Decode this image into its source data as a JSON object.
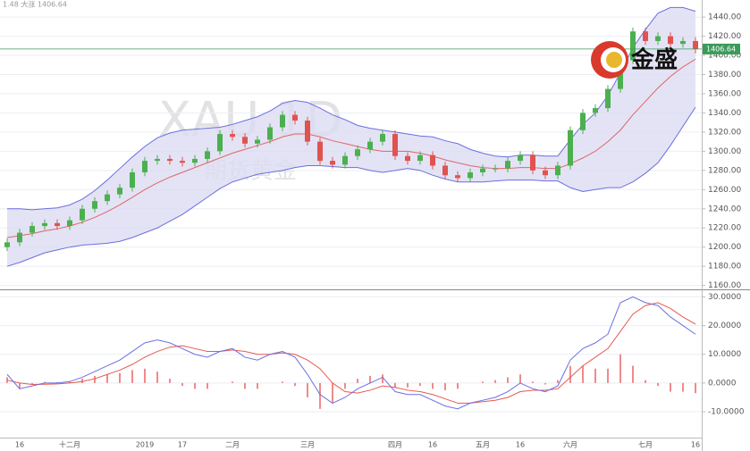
{
  "chart_data": [
    {
      "type": "candlestick",
      "header": "1.48 大涨 1406.64",
      "watermark": "XAU 1D",
      "watermark_sub": "期货黄金",
      "logo_text": "金盛",
      "categories": [
        null,
        "16",
        null,
        null,
        null,
        "十二月",
        null,
        null,
        null,
        null,
        null,
        "2019",
        null,
        null,
        "17",
        null,
        null,
        null,
        "二月",
        null,
        null,
        null,
        null,
        null,
        "三月",
        null,
        null,
        null,
        null,
        null,
        null,
        "四月",
        null,
        null,
        "16",
        null,
        null,
        null,
        "五月",
        null,
        null,
        "16",
        null,
        null,
        null,
        "六月",
        null,
        null,
        null,
        null,
        null,
        "七月",
        null,
        null,
        null,
        "16"
      ],
      "open": [
        1200,
        1205,
        1215,
        1222,
        1225,
        1222,
        1228,
        1240,
        1248,
        1255,
        1262,
        1278,
        1290,
        1292,
        1290,
        1288,
        1292,
        1300,
        1318,
        1315,
        1308,
        1312,
        1325,
        1338,
        1332,
        1310,
        1290,
        1286,
        1295,
        1302,
        1310,
        1318,
        1295,
        1290,
        1296,
        1285,
        1275,
        1272,
        1278,
        1282,
        1282,
        1290,
        1296,
        1280,
        1275,
        1285,
        1322,
        1340,
        1345,
        1365,
        1395,
        1425,
        1415,
        1420,
        1412,
        1415
      ],
      "high": [
        1209,
        1219,
        1226,
        1229,
        1229,
        1232,
        1244,
        1252,
        1259,
        1266,
        1282,
        1294,
        1296,
        1296,
        1294,
        1296,
        1304,
        1322,
        1322,
        1319,
        1316,
        1329,
        1342,
        1342,
        1336,
        1314,
        1294,
        1299,
        1306,
        1314,
        1322,
        1322,
        1299,
        1300,
        1300,
        1289,
        1279,
        1282,
        1286,
        1286,
        1294,
        1300,
        1300,
        1284,
        1289,
        1326,
        1344,
        1349,
        1369,
        1399,
        1429,
        1429,
        1424,
        1424,
        1419,
        1419
      ],
      "low": [
        1196,
        1201,
        1211,
        1218,
        1218,
        1218,
        1224,
        1236,
        1244,
        1251,
        1258,
        1274,
        1286,
        1286,
        1284,
        1284,
        1288,
        1296,
        1311,
        1304,
        1304,
        1308,
        1321,
        1328,
        1306,
        1286,
        1282,
        1282,
        1291,
        1298,
        1306,
        1291,
        1286,
        1286,
        1281,
        1271,
        1268,
        1268,
        1274,
        1278,
        1278,
        1286,
        1276,
        1271,
        1271,
        1281,
        1318,
        1336,
        1341,
        1361,
        1391,
        1411,
        1411,
        1408,
        1408,
        1402
      ],
      "close": [
        1205,
        1215,
        1222,
        1225,
        1222,
        1228,
        1240,
        1248,
        1255,
        1262,
        1278,
        1290,
        1292,
        1290,
        1288,
        1292,
        1300,
        1318,
        1315,
        1308,
        1312,
        1325,
        1338,
        1332,
        1310,
        1290,
        1286,
        1295,
        1302,
        1310,
        1318,
        1295,
        1290,
        1296,
        1285,
        1275,
        1272,
        1278,
        1282,
        1282,
        1290,
        1296,
        1280,
        1275,
        1285,
        1322,
        1340,
        1345,
        1365,
        1395,
        1425,
        1415,
        1420,
        1412,
        1415,
        1406.64
      ],
      "up_color": "#4caf50",
      "down_color": "#e0534f",
      "bands": {
        "upper": [
          1240,
          1240,
          1239,
          1240,
          1241,
          1244,
          1250,
          1259,
          1270,
          1282,
          1294,
          1305,
          1314,
          1319,
          1322,
          1323,
          1324,
          1325,
          1328,
          1332,
          1336,
          1342,
          1350,
          1353,
          1351,
          1345,
          1338,
          1333,
          1327,
          1324,
          1322,
          1320,
          1318,
          1316,
          1315,
          1311,
          1308,
          1302,
          1298,
          1295,
          1294,
          1296,
          1296,
          1295,
          1295,
          1312,
          1328,
          1340,
          1358,
          1382,
          1408,
          1427,
          1444,
          1450,
          1450,
          1446
        ],
        "middle": [
          1210,
          1212,
          1214,
          1217,
          1219,
          1222,
          1226,
          1231,
          1237,
          1244,
          1252,
          1260,
          1267,
          1273,
          1278,
          1283,
          1288,
          1293,
          1298,
          1302,
          1306,
          1310,
          1315,
          1318,
          1318,
          1315,
          1311,
          1308,
          1305,
          1302,
          1300,
          1300,
          1300,
          1298,
          1295,
          1291,
          1288,
          1285,
          1283,
          1282,
          1282,
          1283,
          1283,
          1282,
          1282,
          1287,
          1293,
          1300,
          1310,
          1322,
          1338,
          1352,
          1366,
          1378,
          1388,
          1396
        ],
        "lower": [
          1180,
          1184,
          1189,
          1194,
          1197,
          1200,
          1202,
          1203,
          1204,
          1206,
          1210,
          1215,
          1220,
          1227,
          1234,
          1243,
          1252,
          1261,
          1268,
          1272,
          1276,
          1278,
          1280,
          1283,
          1285,
          1285,
          1284,
          1283,
          1283,
          1280,
          1278,
          1280,
          1282,
          1280,
          1275,
          1271,
          1268,
          1268,
          1268,
          1269,
          1270,
          1270,
          1270,
          1269,
          1269,
          1262,
          1258,
          1260,
          1262,
          1262,
          1268,
          1277,
          1288,
          1306,
          1326,
          1346
        ],
        "band_color": "#6b6fe0",
        "fill_color": "#dcdcf2",
        "middle_color": "#e06666"
      },
      "last_price": 1406.64,
      "last_price_color": "#3a9a5a",
      "ylim": [
        1155,
        1455
      ],
      "yticks": [
        {
          "value": 1160,
          "label": "1160.00"
        },
        {
          "value": 1180,
          "label": "1180.00"
        },
        {
          "value": 1200,
          "label": "1200.00"
        },
        {
          "value": 1220,
          "label": "1220.00"
        },
        {
          "value": 1240,
          "label": "1240.00"
        },
        {
          "value": 1260,
          "label": "1260.00"
        },
        {
          "value": 1280,
          "label": "1280.00"
        },
        {
          "value": 1300,
          "label": "1300.00"
        },
        {
          "value": 1320,
          "label": "1320.00"
        },
        {
          "value": 1340,
          "label": "1340.00"
        },
        {
          "value": 1360,
          "label": "1360.00"
        },
        {
          "value": 1380,
          "label": "1380.00"
        },
        {
          "value": 1400,
          "label": "1400.00"
        },
        {
          "value": 1420,
          "label": "1420.00"
        },
        {
          "value": 1440,
          "label": "1440.00"
        }
      ],
      "grid": true
    },
    {
      "type": "macd",
      "dif": [
        3,
        -2,
        -1,
        0,
        0,
        0.5,
        2,
        4,
        6,
        8,
        11,
        14,
        15,
        14,
        12,
        10,
        9,
        11,
        12,
        9,
        8,
        10,
        11,
        9,
        3,
        -4,
        -7,
        -5,
        -2,
        0,
        2,
        -3,
        -4,
        -4,
        -6,
        -8,
        -9,
        -7,
        -6,
        -5,
        -3,
        0,
        -2,
        -3,
        -1,
        8,
        12,
        14,
        17,
        28,
        30,
        28,
        27,
        23,
        20,
        17
      ],
      "dea": [
        1,
        0,
        -0.5,
        -0.4,
        -0.3,
        0,
        0.5,
        1.5,
        3,
        4.5,
        6.5,
        9,
        11,
        12.5,
        13,
        12,
        11,
        11,
        11.5,
        11,
        10,
        10,
        10.5,
        10,
        8,
        5,
        0,
        -3,
        -3.5,
        -2.5,
        -1,
        -1.5,
        -2.5,
        -3,
        -4,
        -5.5,
        -7,
        -7,
        -6.5,
        -6,
        -5,
        -3,
        -2.5,
        -2.5,
        -2,
        2,
        6,
        9,
        12,
        18,
        24,
        27,
        28,
        26,
        23,
        20.5
      ],
      "histogram": [
        2,
        -2,
        -0.5,
        0.4,
        0.3,
        0.5,
        1.5,
        2.5,
        3,
        3.5,
        4.5,
        5,
        4,
        1.5,
        -1,
        -2,
        -2,
        0,
        0.5,
        -2,
        -2,
        0,
        0.5,
        -1,
        -5,
        -9,
        -7,
        -2,
        1.5,
        2.5,
        3,
        -1.5,
        -1.5,
        -1,
        -2,
        -2.5,
        -2,
        0,
        0.5,
        1,
        2,
        3,
        0.5,
        -0.5,
        1,
        6,
        6,
        5,
        5,
        10,
        6,
        1,
        -1,
        -3,
        -3,
        -3.5
      ],
      "dif_color": "#6b6fe0",
      "dea_color": "#e8584f",
      "hist_color": "#f08a8a",
      "ylim": [
        -19,
        32
      ],
      "yticks": [
        {
          "value": -10,
          "label": "-10.0000"
        },
        {
          "value": 0,
          "label": "0.0000"
        },
        {
          "value": 10,
          "label": "10.0000"
        },
        {
          "value": 20,
          "label": "20.0000"
        },
        {
          "value": 30,
          "label": "30.0000"
        }
      ],
      "grid": true
    }
  ]
}
